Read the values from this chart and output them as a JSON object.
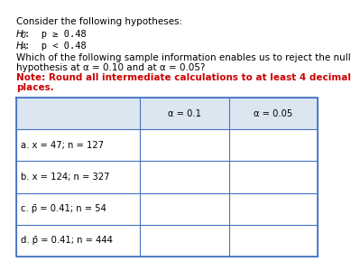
{
  "title_line": "Consider the following hypotheses:",
  "h0_line1": "H",
  "h0_sub": "0",
  "h0_rest": ":  p ≥ 0.48",
  "ha_line1": "H",
  "ha_sub": "A",
  "ha_rest": ":  p < 0.48",
  "question_line1": "Which of the following sample information enables us to reject the null",
  "question_line2": "hypothesis at α = 0.10 and at α = 0.05?",
  "note_line1": "Note: Round all intermediate calculations to at least 4 decimal",
  "note_line2": "places.",
  "col2_header": "α = 0.1",
  "col3_header": "α = 0.05",
  "rows": [
    "a. x = 47; n = 127",
    "b. x = 124; n = 327",
    "c. p̄ = 0.41; n = 54",
    "d. p̄ = 0.41; n = 444"
  ],
  "bg_color": "#ffffff",
  "header_bg": "#dce6f1",
  "table_border_color": "#4472c4",
  "note_color": "#cc0000",
  "text_color": "#000000",
  "title_fontsize": 7.5,
  "body_fontsize": 7.5,
  "note_fontsize": 7.5,
  "table_fontsize": 7.2
}
